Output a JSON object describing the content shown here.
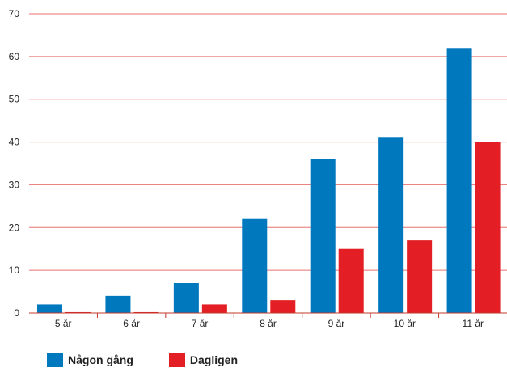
{
  "chart_data": {
    "type": "bar",
    "categories": [
      "5 år",
      "6 år",
      "7 år",
      "8 år",
      "9 år",
      "10 år",
      "11 år"
    ],
    "series": [
      {
        "name": "Någon gång",
        "color": "#0078BE",
        "values": [
          2,
          4,
          7,
          22,
          36,
          41,
          62
        ]
      },
      {
        "name": "Dagligen",
        "color": "#E31E24",
        "values": [
          0.2,
          0.2,
          2,
          3,
          15,
          17,
          40
        ]
      }
    ],
    "ylim": [
      0,
      70
    ],
    "yticks": [
      0,
      10,
      20,
      30,
      40,
      50,
      60,
      70
    ],
    "grid": true,
    "grid_color": "#E8736F",
    "legend_position": "bottom-left"
  }
}
